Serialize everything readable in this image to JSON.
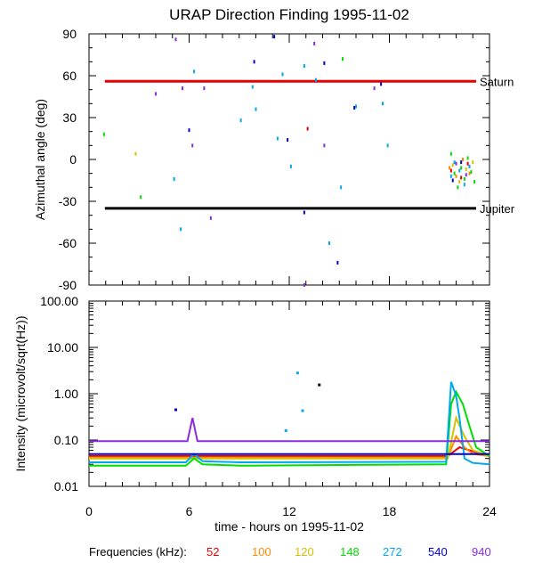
{
  "chart_data": [
    {
      "panel": "top",
      "type": "scatter",
      "title": "URAP Direction Finding  1995-11-02",
      "ylabel": "Azimuthal angle (deg)",
      "xlabel": "",
      "xlim": [
        0,
        24
      ],
      "ylim": [
        -90,
        90
      ],
      "yticks": [
        {
          "value": 90,
          "label": "90"
        },
        {
          "value": 60,
          "label": "60"
        },
        {
          "value": 30,
          "label": "30"
        },
        {
          "value": 0,
          "label": "0"
        },
        {
          "value": -30,
          "label": "-30"
        },
        {
          "value": -60,
          "label": "-60"
        },
        {
          "value": -90,
          "label": "-90"
        }
      ],
      "reference_lines": [
        {
          "name": "Saturn",
          "label": "Saturn",
          "y": 56,
          "x_start": 0.95,
          "x_end": 23.2,
          "color": "#e60000"
        },
        {
          "name": "Jupiter",
          "label": "Jupiter",
          "y": -35,
          "x_start": 0.95,
          "x_end": 23.2,
          "color": "#000000"
        }
      ],
      "series": [
        {
          "name": "52",
          "color": "#e60000",
          "points": [
            [
              13.1,
              22
            ],
            [
              21.7,
              -8
            ],
            [
              22.3,
              -13
            ],
            [
              22.7,
              -3
            ]
          ]
        },
        {
          "name": "100",
          "color": "#ff8c00",
          "points": [
            [
              21.6,
              -6
            ],
            [
              22.0,
              -12
            ],
            [
              22.4,
              0
            ],
            [
              22.8,
              -10
            ]
          ]
        },
        {
          "name": "120",
          "color": "#d8c000",
          "points": [
            [
              2.8,
              4
            ],
            [
              21.8,
              -4
            ],
            [
              22.2,
              -16
            ],
            [
              22.6,
              -7
            ],
            [
              23.0,
              -2
            ]
          ]
        },
        {
          "name": "148",
          "color": "#00e000",
          "points": [
            [
              0.9,
              18
            ],
            [
              3.1,
              -27
            ],
            [
              15.2,
              72
            ],
            [
              21.7,
              4
            ],
            [
              21.9,
              -10
            ],
            [
              22.1,
              -20
            ],
            [
              22.3,
              -6
            ],
            [
              22.5,
              -14
            ],
            [
              22.7,
              1
            ],
            [
              22.9,
              -9
            ],
            [
              23.1,
              -16
            ]
          ]
        },
        {
          "name": "272",
          "color": "#00a8f0",
          "points": [
            [
              5.1,
              -14
            ],
            [
              5.5,
              -50
            ],
            [
              6.3,
              63
            ],
            [
              9.1,
              28
            ],
            [
              9.8,
              52
            ],
            [
              10.0,
              36
            ],
            [
              11.3,
              15
            ],
            [
              11.6,
              61
            ],
            [
              12.1,
              -5
            ],
            [
              12.9,
              67
            ],
            [
              13.6,
              57
            ],
            [
              14.4,
              -60
            ],
            [
              15.1,
              -20
            ],
            [
              16.0,
              38
            ],
            [
              17.6,
              40
            ],
            [
              17.9,
              10
            ],
            [
              21.7,
              -12
            ],
            [
              21.9,
              -2
            ],
            [
              22.2,
              -8
            ],
            [
              22.5,
              -18
            ],
            [
              22.8,
              -5
            ]
          ]
        },
        {
          "name": "540",
          "color": "#0000d0",
          "points": [
            [
              6.0,
              21
            ],
            [
              9.9,
              70
            ],
            [
              11.1,
              88
            ],
            [
              11.9,
              14
            ],
            [
              12.9,
              -38
            ],
            [
              14.1,
              69
            ],
            [
              14.9,
              -74
            ],
            [
              15.9,
              37
            ],
            [
              17.5,
              54
            ],
            [
              21.8,
              -15
            ],
            [
              22.3,
              -2
            ]
          ]
        },
        {
          "name": "940",
          "color": "#8a2be2",
          "points": [
            [
              4.0,
              47
            ],
            [
              5.2,
              86
            ],
            [
              5.6,
              51
            ],
            [
              6.2,
              10
            ],
            [
              6.9,
              51
            ],
            [
              7.3,
              -42
            ],
            [
              12.9,
              -90
            ],
            [
              13.5,
              83
            ],
            [
              14.1,
              10
            ],
            [
              17.1,
              51
            ],
            [
              22.0,
              -3
            ],
            [
              22.6,
              -11
            ]
          ]
        }
      ]
    },
    {
      "panel": "bottom",
      "type": "line",
      "title": "",
      "ylabel": "Intensity (microvolt/sqrt(Hz))",
      "xlabel": "time - hours on 1995-11-02",
      "xlim": [
        0,
        24
      ],
      "ylim": [
        0.01,
        100
      ],
      "yscale": "log",
      "yticks": [
        {
          "value": 100,
          "label": "100.00"
        },
        {
          "value": 10,
          "label": "10.00"
        },
        {
          "value": 1,
          "label": "1.00"
        },
        {
          "value": 0.1,
          "label": "0.10"
        },
        {
          "value": 0.01,
          "label": "0.01"
        }
      ],
      "xticks": [
        {
          "value": 0,
          "label": "0"
        },
        {
          "value": 6,
          "label": "6"
        },
        {
          "value": 12,
          "label": "12"
        },
        {
          "value": 18,
          "label": "18"
        },
        {
          "value": 24,
          "label": "24"
        }
      ],
      "series": [
        {
          "name": "52",
          "color": "#e60000",
          "x": [
            0,
            9,
            9.5,
            21.5,
            22.2,
            22.8,
            23.5,
            24
          ],
          "y": [
            0.045,
            0.045,
            0.045,
            0.045,
            0.07,
            0.06,
            0.05,
            0.045
          ]
        },
        {
          "name": "100",
          "color": "#ff8c00",
          "x": [
            0,
            9,
            9.5,
            21.5,
            22.0,
            22.5,
            23.0,
            24
          ],
          "y": [
            0.042,
            0.042,
            0.042,
            0.042,
            0.12,
            0.07,
            0.05,
            0.045
          ]
        },
        {
          "name": "120",
          "color": "#d8c000",
          "x": [
            0,
            9,
            9.5,
            21.5,
            22.0,
            22.5,
            23.0,
            24
          ],
          "y": [
            0.04,
            0.04,
            0.04,
            0.04,
            0.3,
            0.12,
            0.06,
            0.045
          ]
        },
        {
          "name": "148",
          "color": "#00e000",
          "x": [
            0,
            5.8,
            6.3,
            6.8,
            9,
            9.5,
            21.4,
            21.7,
            22.0,
            22.4,
            22.8,
            23.2,
            24
          ],
          "y": [
            0.028,
            0.028,
            0.04,
            0.03,
            0.028,
            0.028,
            0.03,
            0.6,
            1.1,
            0.6,
            0.2,
            0.07,
            0.045
          ]
        },
        {
          "name": "272",
          "color": "#00a8f0",
          "x": [
            0,
            5.8,
            6.3,
            6.8,
            9,
            9.5,
            21.4,
            21.7,
            22.0,
            22.2,
            22.5,
            23.0,
            24
          ],
          "y": [
            0.033,
            0.033,
            0.05,
            0.035,
            0.033,
            0.033,
            0.034,
            1.8,
            0.9,
            0.3,
            0.04,
            0.032,
            0.03
          ]
        },
        {
          "name": "540",
          "color": "#0000d0",
          "x": [
            0,
            24
          ],
          "y": [
            0.05,
            0.05
          ]
        },
        {
          "name": "940",
          "color": "#8a2be2",
          "x": [
            0,
            5.9,
            6.2,
            6.5,
            24
          ],
          "y": [
            0.095,
            0.095,
            0.3,
            0.095,
            0.095
          ]
        }
      ],
      "annotations": [
        {
          "x": 5.2,
          "y": 0.45,
          "color": "#0000d0"
        },
        {
          "x": 12.5,
          "y": 2.8,
          "color": "#00a8f0"
        },
        {
          "x": 13.8,
          "y": 1.55,
          "color": "#000000"
        },
        {
          "x": 12.8,
          "y": 0.43,
          "color": "#00a8f0"
        },
        {
          "x": 11.8,
          "y": 0.16,
          "color": "#00a8f0"
        }
      ]
    }
  ],
  "legend": {
    "label": "Frequencies (kHz):",
    "items": [
      {
        "label": "52",
        "color": "#e60000"
      },
      {
        "label": "100",
        "color": "#ff8c00"
      },
      {
        "label": "120",
        "color": "#d8c000"
      },
      {
        "label": "148",
        "color": "#00e000"
      },
      {
        "label": "272",
        "color": "#00a8f0"
      },
      {
        "label": "540",
        "color": "#0000d0"
      },
      {
        "label": "940",
        "color": "#8a2be2"
      }
    ]
  }
}
